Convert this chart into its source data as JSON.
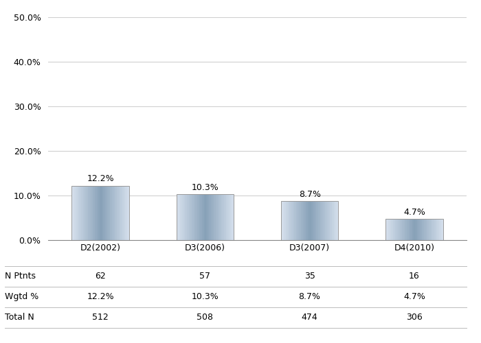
{
  "categories": [
    "D2(2002)",
    "D3(2006)",
    "D3(2007)",
    "D4(2010)"
  ],
  "values": [
    12.2,
    10.3,
    8.7,
    4.7
  ],
  "labels": [
    "12.2%",
    "10.3%",
    "8.7%",
    "4.7%"
  ],
  "n_ptnts": [
    "62",
    "57",
    "35",
    "16"
  ],
  "wgtd_pct": [
    "12.2%",
    "10.3%",
    "8.7%",
    "4.7%"
  ],
  "total_n": [
    "512",
    "508",
    "474",
    "306"
  ],
  "ylim": [
    0,
    50
  ],
  "yticks": [
    0,
    10,
    20,
    30,
    40,
    50
  ],
  "ytick_labels": [
    "0.0%",
    "10.0%",
    "20.0%",
    "30.0%",
    "40.0%",
    "50.0%"
  ],
  "bar_color_light": [
    0.84,
    0.88,
    0.93
  ],
  "bar_color_dark": [
    0.53,
    0.63,
    0.72
  ],
  "bar_edge_color": "#999999",
  "background_color": "#ffffff",
  "grid_color": "#d0d0d0",
  "row_labels": [
    "N Ptnts",
    "Wgtd %",
    "Total N"
  ],
  "label_fontsize": 9,
  "tick_fontsize": 9,
  "table_fontsize": 9,
  "bar_width": 0.55
}
